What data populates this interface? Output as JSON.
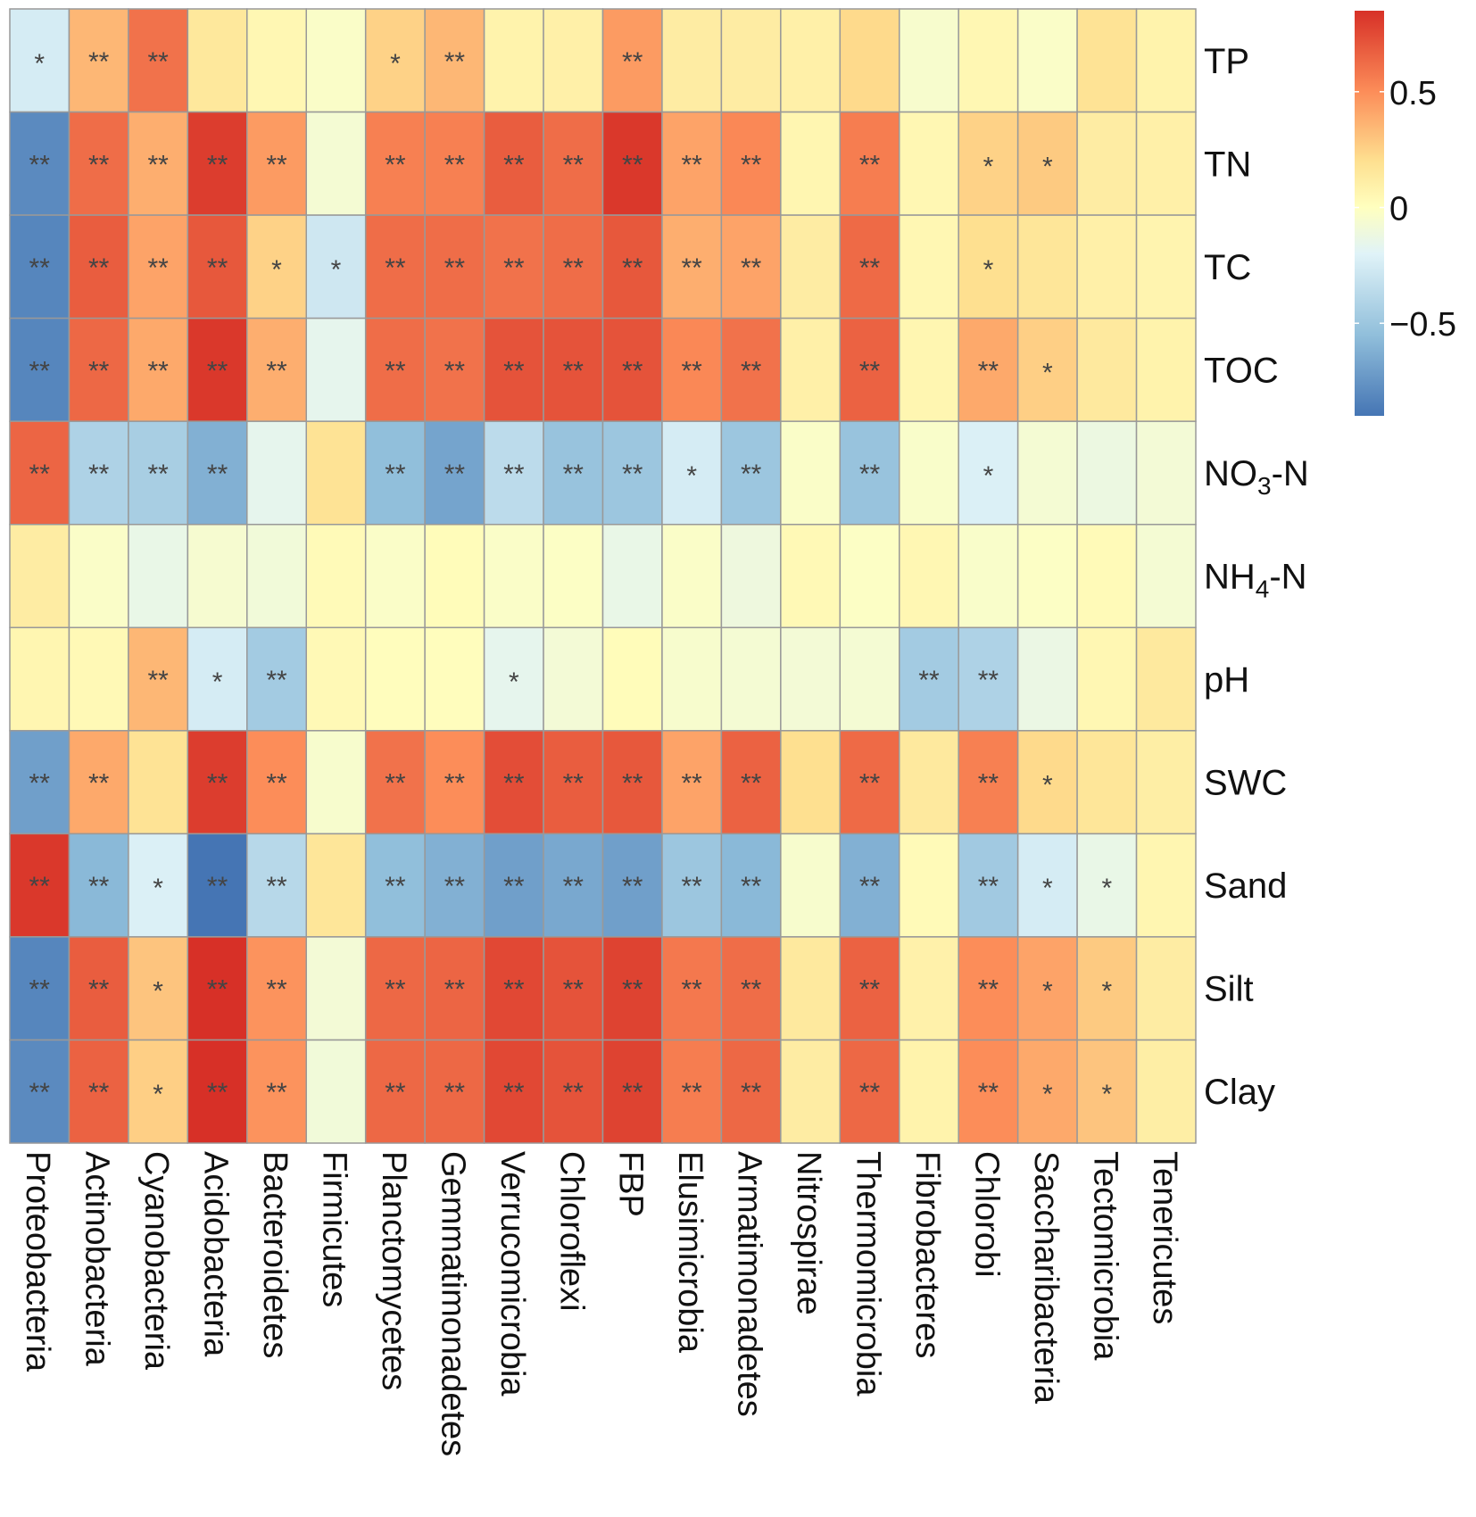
{
  "chart_data": {
    "type": "heatmap",
    "title": "",
    "rows": [
      "TP",
      "TN",
      "TC",
      "TOC",
      "NO3-N",
      "NH4-N",
      "pH",
      "SWC",
      "Sand",
      "Silt",
      "Clay"
    ],
    "row_labels": [
      {
        "main": "TP",
        "sub": "",
        "tail": ""
      },
      {
        "main": "TN",
        "sub": "",
        "tail": ""
      },
      {
        "main": "TC",
        "sub": "",
        "tail": ""
      },
      {
        "main": "TOC",
        "sub": "",
        "tail": ""
      },
      {
        "main": "NO",
        "sub": "3",
        "tail": "-N"
      },
      {
        "main": "NH",
        "sub": "4",
        "tail": "-N"
      },
      {
        "main": "pH",
        "sub": "",
        "tail": ""
      },
      {
        "main": "SWC",
        "sub": "",
        "tail": ""
      },
      {
        "main": "Sand",
        "sub": "",
        "tail": ""
      },
      {
        "main": "Silt",
        "sub": "",
        "tail": ""
      },
      {
        "main": "Clay",
        "sub": "",
        "tail": ""
      }
    ],
    "columns": [
      "Proteobacteria",
      "Actinobacteria",
      "Cyanobacteria",
      "Acidobacteria",
      "Bacteroidetes",
      "Firmicutes",
      "Planctomycetes",
      "Gemmatimonadetes",
      "Verrucomicrobia",
      "Chloroflexi",
      "FBP",
      "Elusimicrobia",
      "Armatimonadetes",
      "Nitrospirae",
      "Thermomicrobia",
      "Fibrobacteres",
      "Chlorobi",
      "Saccharibacteria",
      "Tectomicrobia",
      "Tenericutes"
    ],
    "values": [
      [
        -0.25,
        0.35,
        0.6,
        0.15,
        0.05,
        -0.03,
        0.25,
        0.35,
        0.08,
        0.1,
        0.45,
        0.12,
        0.12,
        0.1,
        0.22,
        -0.05,
        0.05,
        -0.03,
        0.18,
        0.08
      ],
      [
        -0.8,
        0.62,
        0.38,
        0.8,
        0.45,
        -0.07,
        0.55,
        0.55,
        0.68,
        0.62,
        0.82,
        0.42,
        0.52,
        0.06,
        0.56,
        0.05,
        0.25,
        0.28,
        0.12,
        0.1
      ],
      [
        -0.82,
        0.68,
        0.42,
        0.7,
        0.25,
        -0.28,
        0.62,
        0.62,
        0.6,
        0.62,
        0.7,
        0.38,
        0.42,
        0.12,
        0.63,
        0.05,
        0.2,
        0.16,
        0.1,
        0.07
      ],
      [
        -0.82,
        0.64,
        0.4,
        0.82,
        0.38,
        -0.16,
        0.62,
        0.6,
        0.72,
        0.72,
        0.72,
        0.52,
        0.6,
        0.1,
        0.66,
        0.06,
        0.4,
        0.26,
        0.14,
        0.08
      ],
      [
        0.65,
        -0.42,
        -0.45,
        -0.62,
        -0.16,
        0.18,
        -0.55,
        -0.68,
        -0.36,
        -0.52,
        -0.5,
        -0.25,
        -0.5,
        -0.03,
        -0.52,
        -0.04,
        -0.22,
        -0.07,
        -0.12,
        -0.08
      ],
      [
        0.12,
        -0.03,
        -0.14,
        -0.06,
        -0.09,
        0.03,
        -0.03,
        0.02,
        -0.03,
        -0.02,
        -0.14,
        -0.03,
        -0.11,
        0.04,
        -0.02,
        0.05,
        -0.04,
        -0.02,
        0.03,
        -0.07
      ],
      [
        0.06,
        0.04,
        0.35,
        -0.25,
        -0.47,
        0.04,
        0.01,
        0.01,
        -0.16,
        -0.08,
        0.02,
        -0.05,
        -0.07,
        -0.08,
        -0.07,
        -0.47,
        -0.42,
        -0.13,
        0.05,
        0.14
      ],
      [
        -0.7,
        0.4,
        0.18,
        0.8,
        0.5,
        -0.05,
        0.6,
        0.5,
        0.74,
        0.68,
        0.7,
        0.42,
        0.66,
        0.2,
        0.63,
        0.14,
        0.55,
        0.22,
        0.16,
        0.11
      ],
      [
        0.82,
        -0.58,
        -0.22,
        -0.9,
        -0.38,
        0.16,
        -0.55,
        -0.62,
        -0.7,
        -0.66,
        -0.7,
        -0.5,
        -0.58,
        -0.05,
        -0.62,
        0.03,
        -0.48,
        -0.25,
        -0.14,
        0.06
      ],
      [
        -0.82,
        0.68,
        0.3,
        0.86,
        0.48,
        -0.08,
        0.64,
        0.65,
        0.76,
        0.72,
        0.78,
        0.58,
        0.62,
        0.14,
        0.66,
        0.09,
        0.5,
        0.42,
        0.28,
        0.12
      ],
      [
        -0.8,
        0.66,
        0.26,
        0.86,
        0.48,
        -0.09,
        0.64,
        0.64,
        0.76,
        0.72,
        0.78,
        0.56,
        0.64,
        0.12,
        0.64,
        0.08,
        0.5,
        0.4,
        0.3,
        0.11
      ]
    ],
    "significance": [
      [
        "*",
        "**",
        "**",
        "",
        "",
        "",
        "*",
        "**",
        "",
        "",
        "**",
        "",
        "",
        "",
        "",
        "",
        "",
        "",
        "",
        ""
      ],
      [
        "**",
        "**",
        "**",
        "**",
        "**",
        "",
        "**",
        "**",
        "**",
        "**",
        "**",
        "**",
        "**",
        "",
        "**",
        "",
        "*",
        "*",
        "",
        ""
      ],
      [
        "**",
        "**",
        "**",
        "**",
        "*",
        "*",
        "**",
        "**",
        "**",
        "**",
        "**",
        "**",
        "**",
        "",
        "**",
        "",
        "*",
        "",
        "",
        ""
      ],
      [
        "**",
        "**",
        "**",
        "**",
        "**",
        "",
        "**",
        "**",
        "**",
        "**",
        "**",
        "**",
        "**",
        "",
        "**",
        "",
        "**",
        "*",
        "",
        ""
      ],
      [
        "**",
        "**",
        "**",
        "**",
        "",
        "",
        "**",
        "**",
        "**",
        "**",
        "**",
        "*",
        "**",
        "",
        "**",
        "",
        "*",
        "",
        "",
        ""
      ],
      [
        "",
        "",
        "",
        "",
        "",
        "",
        "",
        "",
        "",
        "",
        "",
        "",
        "",
        "",
        "",
        "",
        "",
        "",
        "",
        ""
      ],
      [
        "",
        "",
        "**",
        "*",
        "**",
        "",
        "",
        "",
        "*",
        "",
        "",
        "",
        "",
        "",
        "",
        "**",
        "**",
        "",
        "",
        ""
      ],
      [
        "**",
        "**",
        "",
        "**",
        "**",
        "",
        "**",
        "**",
        "**",
        "**",
        "**",
        "**",
        "**",
        "",
        "**",
        "",
        "**",
        "*",
        "",
        ""
      ],
      [
        "**",
        "**",
        "*",
        "**",
        "**",
        "",
        "**",
        "**",
        "**",
        "**",
        "**",
        "**",
        "**",
        "",
        "**",
        "",
        "**",
        "*",
        "*",
        ""
      ],
      [
        "**",
        "**",
        "*",
        "**",
        "**",
        "",
        "**",
        "**",
        "**",
        "**",
        "**",
        "**",
        "**",
        "",
        "**",
        "",
        "**",
        "*",
        "*",
        ""
      ],
      [
        "**",
        "**",
        "*",
        "**",
        "**",
        "",
        "**",
        "**",
        "**",
        "**",
        "**",
        "**",
        "**",
        "",
        "**",
        "",
        "**",
        "*",
        "*",
        ""
      ]
    ],
    "colorbar": {
      "min": -0.9,
      "max": 0.85,
      "ticks": [
        0.5,
        0,
        -0.5
      ],
      "tick_labels": [
        "0.5",
        "0",
        "−0.5"
      ]
    },
    "colors": {
      "neg_strong": "#4575b4",
      "neg_mid": "#91bfdb",
      "neg_light": "#e0f3f8",
      "neutral": "#ffffbf",
      "pos_light": "#fee090",
      "pos_mid": "#fc8d59",
      "pos_strong": "#d73027",
      "grid": "#999999",
      "star": "#444444"
    }
  }
}
